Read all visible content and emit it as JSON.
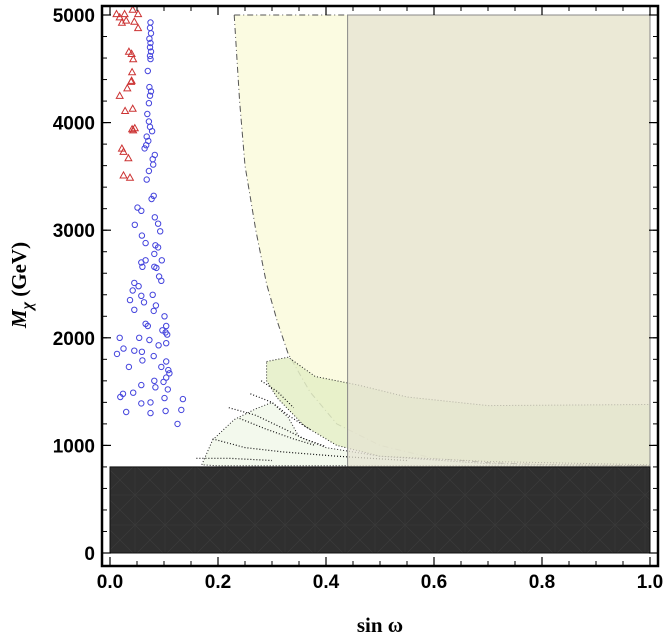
{
  "chart_data": {
    "type": "scatter",
    "title": "",
    "xlabel": "sin ω",
    "ylabel": "M_χ (GeV)",
    "ylabel_parts": {
      "symbol": "M",
      "subscript": "χ",
      "unit": " (GeV)"
    },
    "xlim": [
      0.0,
      1.0
    ],
    "ylim": [
      0,
      5000
    ],
    "xticks": [
      0.0,
      0.2,
      0.4,
      0.6,
      0.8,
      1.0
    ],
    "xtick_labels": [
      "0.0",
      "0.2",
      "0.4",
      "0.6",
      "0.8",
      "1.0"
    ],
    "yticks": [
      0,
      1000,
      2000,
      3000,
      4000,
      5000
    ],
    "ytick_labels": [
      "0",
      "1000",
      "2000",
      "3000",
      "4000",
      "5000"
    ],
    "grid": false,
    "legend": "none",
    "colors": {
      "circles": "#4444dd",
      "triangles": "#cc3333",
      "excluded_dark": "#2f2f2f",
      "yellow_region": "#fbfbe1",
      "gray_region": "#e5e3d1",
      "green_region": "#e4eec5",
      "light_green_region": "#f0f8e8"
    },
    "series": [
      {
        "marker": "circle",
        "color": "#4444dd",
        "points": [
          [
            0.075,
            4930
          ],
          [
            0.074,
            4880
          ],
          [
            0.076,
            4830
          ],
          [
            0.073,
            4780
          ],
          [
            0.075,
            4740
          ],
          [
            0.074,
            4700
          ],
          [
            0.076,
            4660
          ],
          [
            0.074,
            4620
          ],
          [
            0.075,
            4590
          ],
          [
            0.07,
            4480
          ],
          [
            0.073,
            4330
          ],
          [
            0.076,
            4290
          ],
          [
            0.074,
            4250
          ],
          [
            0.072,
            4180
          ],
          [
            0.069,
            4080
          ],
          [
            0.072,
            4010
          ],
          [
            0.074,
            3960
          ],
          [
            0.078,
            3920
          ],
          [
            0.068,
            3870
          ],
          [
            0.071,
            3830
          ],
          [
            0.067,
            3790
          ],
          [
            0.064,
            3760
          ],
          [
            0.083,
            3700
          ],
          [
            0.079,
            3660
          ],
          [
            0.08,
            3610
          ],
          [
            0.072,
            3550
          ],
          [
            0.068,
            3470
          ],
          [
            0.081,
            3320
          ],
          [
            0.077,
            3290
          ],
          [
            0.051,
            3210
          ],
          [
            0.058,
            3180
          ],
          [
            0.083,
            3120
          ],
          [
            0.089,
            3060
          ],
          [
            0.046,
            3050
          ],
          [
            0.093,
            2990
          ],
          [
            0.059,
            2950
          ],
          [
            0.066,
            2880
          ],
          [
            0.084,
            2860
          ],
          [
            0.089,
            2840
          ],
          [
            0.082,
            2780
          ],
          [
            0.066,
            2720
          ],
          [
            0.096,
            2720
          ],
          [
            0.058,
            2700
          ],
          [
            0.06,
            2660
          ],
          [
            0.082,
            2660
          ],
          [
            0.086,
            2650
          ],
          [
            0.091,
            2570
          ],
          [
            0.095,
            2530
          ],
          [
            0.045,
            2510
          ],
          [
            0.053,
            2480
          ],
          [
            0.042,
            2440
          ],
          [
            0.079,
            2400
          ],
          [
            0.058,
            2390
          ],
          [
            0.037,
            2350
          ],
          [
            0.063,
            2330
          ],
          [
            0.085,
            2300
          ],
          [
            0.045,
            2260
          ],
          [
            0.081,
            2250
          ],
          [
            0.101,
            2200
          ],
          [
            0.066,
            2130
          ],
          [
            0.07,
            2110
          ],
          [
            0.104,
            2110
          ],
          [
            0.097,
            2070
          ],
          [
            0.103,
            2050
          ],
          [
            0.106,
            2030
          ],
          [
            0.018,
            2000
          ],
          [
            0.054,
            2000
          ],
          [
            0.073,
            1980
          ],
          [
            0.104,
            1950
          ],
          [
            0.09,
            1930
          ],
          [
            0.025,
            1900
          ],
          [
            0.045,
            1880
          ],
          [
            0.059,
            1870
          ],
          [
            0.013,
            1850
          ],
          [
            0.081,
            1830
          ],
          [
            0.06,
            1790
          ],
          [
            0.104,
            1780
          ],
          [
            0.095,
            1730
          ],
          [
            0.035,
            1730
          ],
          [
            0.108,
            1700
          ],
          [
            0.11,
            1670
          ],
          [
            0.104,
            1630
          ],
          [
            0.082,
            1600
          ],
          [
            0.099,
            1590
          ],
          [
            0.058,
            1560
          ],
          [
            0.084,
            1540
          ],
          [
            0.107,
            1520
          ],
          [
            0.043,
            1490
          ],
          [
            0.024,
            1480
          ],
          [
            0.019,
            1450
          ],
          [
            0.101,
            1440
          ],
          [
            0.135,
            1430
          ],
          [
            0.075,
            1400
          ],
          [
            0.058,
            1390
          ],
          [
            0.03,
            1310
          ],
          [
            0.075,
            1300
          ],
          [
            0.103,
            1320
          ],
          [
            0.132,
            1330
          ],
          [
            0.125,
            1200
          ]
        ]
      },
      {
        "marker": "triangle",
        "color": "#cc3333",
        "points": [
          [
            0.012,
            5010
          ],
          [
            0.027,
            5010
          ],
          [
            0.052,
            5010
          ],
          [
            0.042,
            5050
          ],
          [
            0.018,
            4980
          ],
          [
            0.03,
            4950
          ],
          [
            0.045,
            4940
          ],
          [
            0.022,
            4930
          ],
          [
            0.052,
            4880
          ],
          [
            0.035,
            4660
          ],
          [
            0.04,
            4640
          ],
          [
            0.043,
            4590
          ],
          [
            0.041,
            4470
          ],
          [
            0.04,
            4390
          ],
          [
            0.039,
            4380
          ],
          [
            0.032,
            4320
          ],
          [
            0.018,
            4250
          ],
          [
            0.042,
            4130
          ],
          [
            0.028,
            4110
          ],
          [
            0.046,
            3950
          ],
          [
            0.041,
            3940
          ],
          [
            0.043,
            3930
          ],
          [
            0.022,
            3760
          ],
          [
            0.025,
            3730
          ],
          [
            0.034,
            3670
          ],
          [
            0.025,
            3510
          ],
          [
            0.037,
            3490
          ]
        ]
      }
    ],
    "regions": [
      {
        "name": "",
        "style": "dark hatched",
        "color": "#2f2f2f",
        "outline": "solid",
        "bounds": {
          "x": [
            0.0,
            1.0
          ],
          "y": [
            0,
            800
          ]
        }
      },
      {
        "name": "",
        "style": "pale yellow",
        "color": "#fbfbe1",
        "outline": "dash-dot",
        "boundary": [
          [
            0.23,
            5000
          ],
          [
            0.24,
            4200
          ],
          [
            0.25,
            3600
          ],
          [
            0.27,
            3000
          ],
          [
            0.29,
            2500
          ],
          [
            0.31,
            2150
          ],
          [
            0.33,
            1850
          ],
          [
            0.37,
            1500
          ],
          [
            0.42,
            1200
          ],
          [
            0.5,
            1000
          ],
          [
            0.6,
            880
          ],
          [
            0.7,
            840
          ],
          [
            0.8,
            820
          ],
          [
            1.0,
            810
          ]
        ]
      },
      {
        "name": "",
        "style": "gray",
        "color": "#e5e3d1",
        "outline": "thin solid",
        "bounds": {
          "x": [
            0.44,
            1.0
          ],
          "y": [
            800,
            5000
          ]
        }
      },
      {
        "name": "",
        "style": "green",
        "color": "#e4eec5",
        "outline": "dotted",
        "boundary": [
          [
            0.29,
            1780
          ],
          [
            0.33,
            1820
          ],
          [
            0.38,
            1640
          ],
          [
            0.46,
            1560
          ],
          [
            0.55,
            1450
          ],
          [
            0.7,
            1370
          ],
          [
            1.0,
            1380
          ],
          [
            1.0,
            820
          ],
          [
            0.7,
            850
          ],
          [
            0.5,
            900
          ],
          [
            0.42,
            1000
          ],
          [
            0.36,
            1180
          ],
          [
            0.31,
            1440
          ],
          [
            0.29,
            1600
          ]
        ]
      },
      {
        "name": "",
        "style": "faint green",
        "color": "#f0f8e8",
        "outline": "dotted",
        "boundary": [
          [
            0.17,
            820
          ],
          [
            0.19,
            1050
          ],
          [
            0.23,
            1240
          ],
          [
            0.27,
            1340
          ],
          [
            0.3,
            1400
          ],
          [
            0.33,
            1260
          ],
          [
            0.35,
            1080
          ],
          [
            0.4,
            980
          ],
          [
            0.5,
            900
          ],
          [
            0.7,
            830
          ],
          [
            1.0,
            810
          ],
          [
            0.2,
            810
          ]
        ]
      }
    ]
  }
}
